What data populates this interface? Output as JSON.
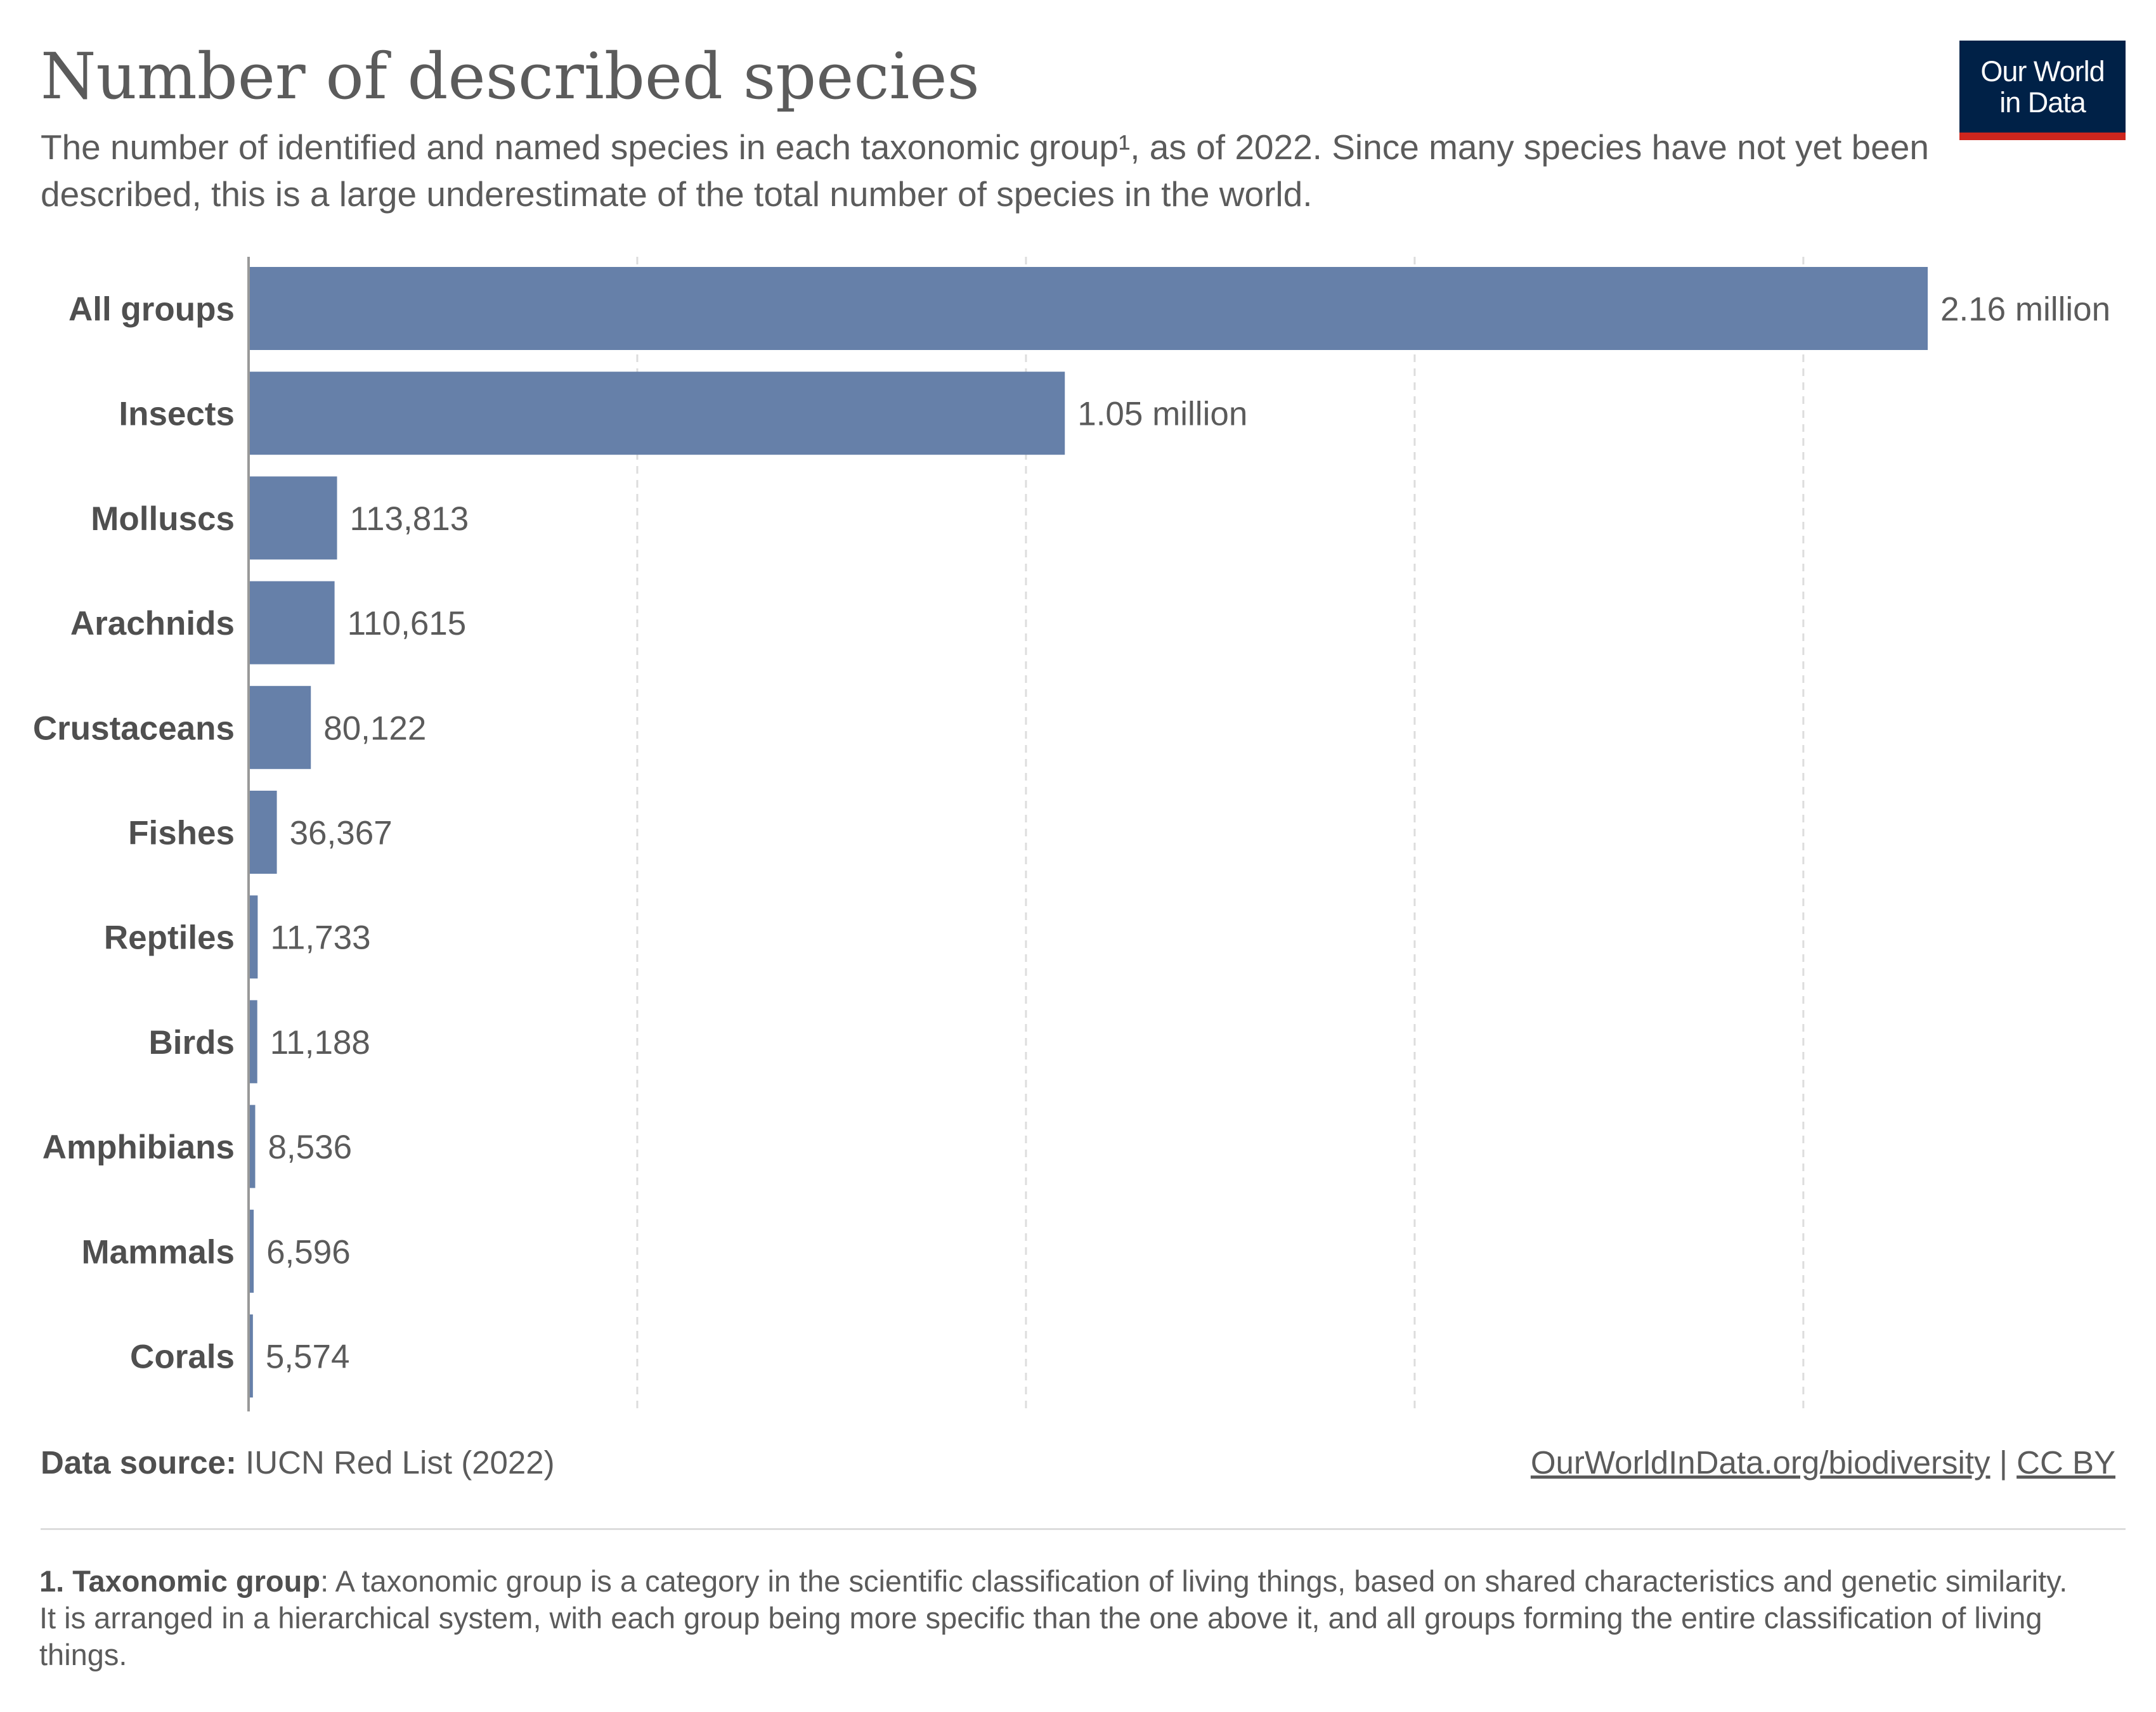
{
  "header": {
    "title": "Number of described species",
    "subtitle": "The number of identified and named species in each taxonomic group¹, as of 2022. Since many species have not yet been described, this is a large underestimate of the total number of species in the world.",
    "logo_line1": "Our World",
    "logo_line2": "in Data"
  },
  "chart_data": {
    "type": "bar",
    "orientation": "horizontal",
    "title": "Number of described species",
    "categories": [
      "All groups",
      "Insects",
      "Molluscs",
      "Arachnids",
      "Crustaceans",
      "Fishes",
      "Reptiles",
      "Birds",
      "Amphibians",
      "Mammals",
      "Corals"
    ],
    "values": [
      2160000,
      1050000,
      113813,
      110615,
      80122,
      36367,
      11733,
      11188,
      8536,
      6596,
      5574
    ],
    "value_labels": [
      "2.16 million",
      "1.05 million",
      "113,813",
      "110,615",
      "80,122",
      "36,367",
      "11,733",
      "11,188",
      "8,536",
      "6,596",
      "5,574"
    ],
    "xlim": [
      0,
      2160000
    ],
    "grid_values": [
      500000,
      1000000,
      1500000,
      2000000
    ],
    "grid": true,
    "bar_color": "#6680a9"
  },
  "footer": {
    "source_label": "Data source:",
    "source_text": " IUCN Red List (2022)",
    "link1": "OurWorldInData.org/biodiversity",
    "separator": " | ",
    "link2": "CC BY",
    "footnote_label": "1. Taxonomic group",
    "footnote_text": ": A taxonomic group is a category in the scientific classification of living things, based on shared characteristics and genetic similarity. It is arranged in a hierarchical system, with each group being more specific than the one above it, and all groups forming the entire classification of living things."
  },
  "colors": {
    "bar": "#6680a9",
    "text": "#5b5b5b",
    "logo_bg": "#002147",
    "logo_accent": "#ce261e",
    "grid": "#dddddd"
  }
}
